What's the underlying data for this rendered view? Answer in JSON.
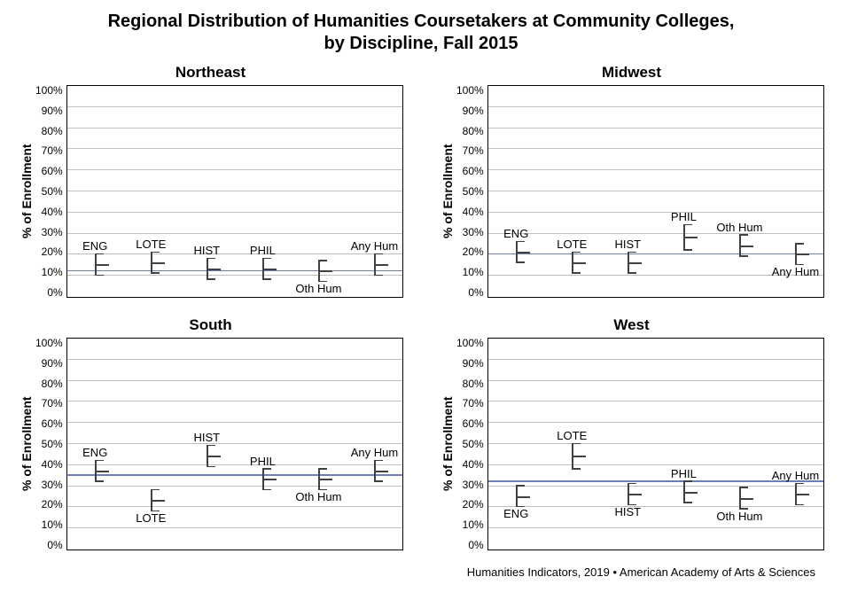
{
  "title_line1": "Regional Distribution of Humanities Coursetakers at Community Colleges,",
  "title_line2": "by Discipline, Fall 2015",
  "footer": "Humanities Indicators, 2019 • American Academy of Arts & Sciences",
  "ylabel": "% of Enrollment",
  "ylim": [
    0,
    100
  ],
  "ytick_step": 10,
  "ytick_suffix": "%",
  "gridline_color": "#bfbfbf",
  "refline_color": "#6a7fb5",
  "marker_color": "#404040",
  "border_color": "#000000",
  "background_color": "#ffffff",
  "title_fontsize": 20,
  "panel_title_fontsize": 17,
  "ylabel_fontsize": 14,
  "tick_fontsize": 12,
  "data_label_fontsize": 13,
  "categories": [
    "ENG",
    "LOTE",
    "HIST",
    "PHIL",
    "Oth Hum",
    "Any Hum"
  ],
  "panels": [
    {
      "name": "Northeast",
      "ref": 12,
      "points": [
        {
          "cat": "ENG",
          "v": 15,
          "lo": 10,
          "hi": 20,
          "labelPos": "above"
        },
        {
          "cat": "LOTE",
          "v": 16,
          "lo": 11,
          "hi": 21,
          "labelPos": "above"
        },
        {
          "cat": "HIST",
          "v": 13,
          "lo": 8,
          "hi": 18,
          "labelPos": "above"
        },
        {
          "cat": "PHIL",
          "v": 13,
          "lo": 8,
          "hi": 18,
          "labelPos": "above"
        },
        {
          "cat": "Oth Hum",
          "v": 12,
          "lo": 7,
          "hi": 17,
          "labelPos": "below"
        },
        {
          "cat": "Any Hum",
          "v": 15,
          "lo": 10,
          "hi": 20,
          "labelPos": "above"
        }
      ]
    },
    {
      "name": "Midwest",
      "ref": 20,
      "points": [
        {
          "cat": "ENG",
          "v": 21,
          "lo": 16,
          "hi": 26,
          "labelPos": "above"
        },
        {
          "cat": "LOTE",
          "v": 16,
          "lo": 11,
          "hi": 21,
          "labelPos": "above"
        },
        {
          "cat": "HIST",
          "v": 16,
          "lo": 11,
          "hi": 21,
          "labelPos": "above"
        },
        {
          "cat": "PHIL",
          "v": 28,
          "lo": 22,
          "hi": 34,
          "labelPos": "above"
        },
        {
          "cat": "Oth Hum",
          "v": 24,
          "lo": 19,
          "hi": 29,
          "labelPos": "above"
        },
        {
          "cat": "Any Hum",
          "v": 20,
          "lo": 15,
          "hi": 25,
          "labelPos": "below"
        }
      ]
    },
    {
      "name": "South",
      "ref": 35,
      "points": [
        {
          "cat": "ENG",
          "v": 37,
          "lo": 32,
          "hi": 42,
          "labelPos": "above"
        },
        {
          "cat": "LOTE",
          "v": 23,
          "lo": 18,
          "hi": 28,
          "labelPos": "below"
        },
        {
          "cat": "HIST",
          "v": 44,
          "lo": 39,
          "hi": 49,
          "labelPos": "above"
        },
        {
          "cat": "PHIL",
          "v": 33,
          "lo": 28,
          "hi": 38,
          "labelPos": "above"
        },
        {
          "cat": "Oth Hum",
          "v": 33,
          "lo": 28,
          "hi": 38,
          "labelPos": "below"
        },
        {
          "cat": "Any Hum",
          "v": 37,
          "lo": 32,
          "hi": 42,
          "labelPos": "above"
        }
      ]
    },
    {
      "name": "West",
      "ref": 32,
      "points": [
        {
          "cat": "ENG",
          "v": 25,
          "lo": 20,
          "hi": 30,
          "labelPos": "below"
        },
        {
          "cat": "LOTE",
          "v": 44,
          "lo": 38,
          "hi": 50,
          "labelPos": "above"
        },
        {
          "cat": "HIST",
          "v": 26,
          "lo": 21,
          "hi": 31,
          "labelPos": "below"
        },
        {
          "cat": "PHIL",
          "v": 27,
          "lo": 22,
          "hi": 32,
          "labelPos": "above"
        },
        {
          "cat": "Oth Hum",
          "v": 24,
          "lo": 19,
          "hi": 29,
          "labelPos": "below"
        },
        {
          "cat": "Any Hum",
          "v": 26,
          "lo": 21,
          "hi": 31,
          "labelPos": "above"
        }
      ]
    }
  ]
}
